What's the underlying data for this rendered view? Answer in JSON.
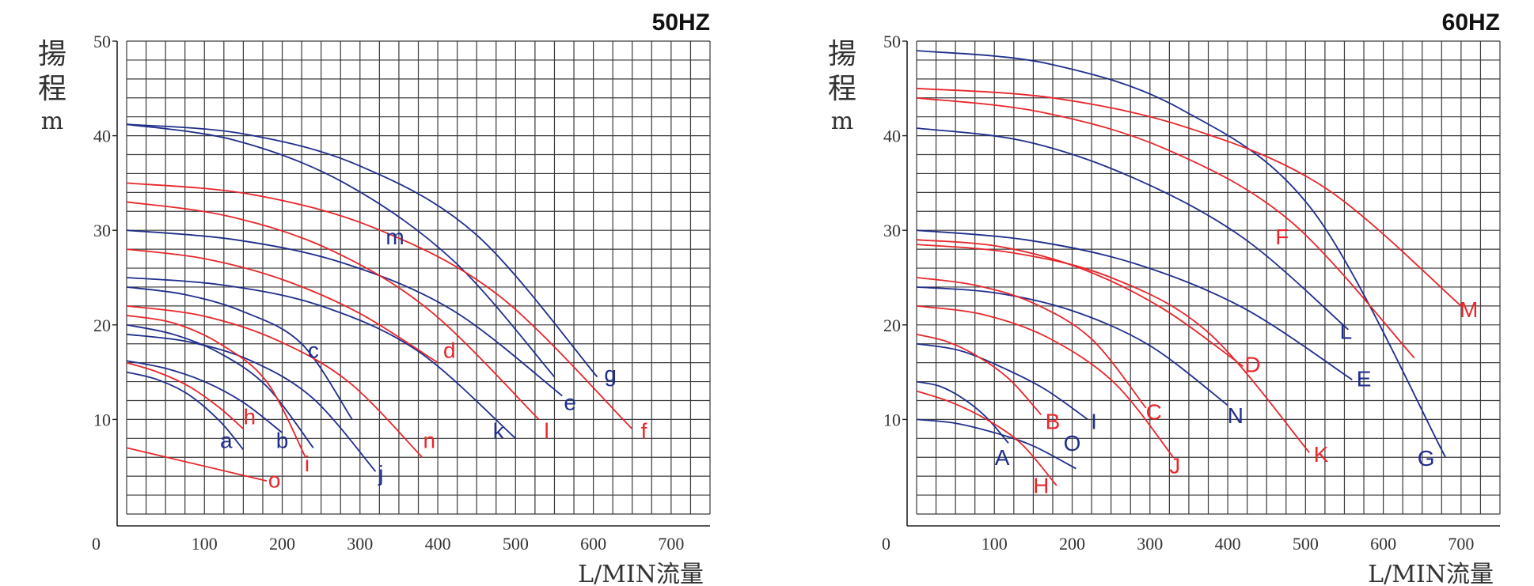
{
  "colors": {
    "red": "#e8262b",
    "blue": "#1f2e8c",
    "grid": "#3a3a3a",
    "axis": "#222222"
  },
  "chart_data": [
    {
      "type": "line",
      "title": "50HZ",
      "ylabel": "揚程",
      "yunit": "m",
      "xlabel": "L/MIN流量",
      "origin_label": "0",
      "xlim": [
        0,
        750
      ],
      "ylim": [
        0,
        50
      ],
      "xticks": [
        100,
        200,
        300,
        400,
        500,
        600,
        700
      ],
      "yticks": [
        10,
        20,
        30,
        40,
        50
      ],
      "grid": true,
      "series": [
        {
          "name": "a",
          "color": "blue",
          "x": [
            0,
            40,
            80,
            120,
            150
          ],
          "y": [
            15,
            14.2,
            12.6,
            9.8,
            6.8
          ]
        },
        {
          "name": "b",
          "color": "blue",
          "x": [
            0,
            50,
            100,
            150,
            200
          ],
          "y": [
            16.2,
            15.4,
            14,
            11.8,
            8.6
          ]
        },
        {
          "name": "c",
          "color": "blue",
          "x": [
            0,
            75,
            150,
            225,
            290
          ],
          "y": [
            24,
            23.2,
            21.4,
            18,
            10
          ]
        },
        {
          "name": "e",
          "color": "blue",
          "x": [
            0,
            140,
            280,
            420,
            560
          ],
          "y": [
            30,
            29,
            26.5,
            21.5,
            12.5
          ]
        },
        {
          "name": "g",
          "color": "blue",
          "x": [
            0,
            150,
            300,
            450,
            605
          ],
          "y": [
            41.2,
            40.2,
            36.8,
            29.5,
            14.5
          ]
        },
        {
          "name": "j",
          "color": "blue",
          "x": [
            0,
            80,
            160,
            240,
            320
          ],
          "y": [
            19,
            18.2,
            16.2,
            12.2,
            4.5
          ]
        },
        {
          "name": "k",
          "color": "blue",
          "x": [
            0,
            125,
            250,
            375,
            500
          ],
          "y": [
            25,
            24.2,
            22,
            17.2,
            8
          ]
        },
        {
          "name": "m",
          "color": "blue",
          "x": [
            0,
            140,
            280,
            420,
            550
          ],
          "y": [
            41.2,
            39.5,
            35,
            26.8,
            14.5
          ]
        },
        {
          "name": "unlabeled",
          "color": "blue",
          "x": [
            0,
            60,
            120,
            180,
            240
          ],
          "y": [
            20,
            19,
            17,
            13.5,
            7
          ]
        },
        {
          "name": "d",
          "color": "red",
          "x": [
            0,
            100,
            200,
            300,
            400
          ],
          "y": [
            28,
            27,
            24.8,
            21.2,
            16
          ]
        },
        {
          "name": "f",
          "color": "red",
          "x": [
            0,
            160,
            320,
            480,
            650
          ],
          "y": [
            35,
            33.8,
            30.2,
            23,
            9
          ]
        },
        {
          "name": "h",
          "color": "red",
          "x": [
            0,
            40,
            80,
            120,
            150
          ],
          "y": [
            16,
            15,
            13.5,
            11.2,
            9
          ]
        },
        {
          "name": "i",
          "color": "red",
          "x": [
            0,
            60,
            120,
            180,
            230
          ],
          "y": [
            21,
            20.2,
            18,
            14,
            6
          ]
        },
        {
          "name": "l",
          "color": "red",
          "x": [
            0,
            130,
            260,
            390,
            530
          ],
          "y": [
            33,
            31.5,
            28,
            21.5,
            10
          ]
        },
        {
          "name": "n",
          "color": "red",
          "x": [
            0,
            95,
            190,
            285,
            380
          ],
          "y": [
            22,
            21,
            18.5,
            14,
            6
          ]
        },
        {
          "name": "o",
          "color": "red",
          "x": [
            0,
            180
          ],
          "y": [
            7,
            3.5
          ]
        }
      ],
      "labels": [
        {
          "text": "a",
          "color": "blue",
          "x": 128,
          "y": 7
        },
        {
          "text": "b",
          "color": "blue",
          "x": 200,
          "y": 7
        },
        {
          "text": "c",
          "color": "blue",
          "x": 240,
          "y": 16.5
        },
        {
          "text": "e",
          "color": "blue",
          "x": 570,
          "y": 11
        },
        {
          "text": "g",
          "color": "blue",
          "x": 622,
          "y": 14
        },
        {
          "text": "j",
          "color": "blue",
          "x": 327,
          "y": 3.5
        },
        {
          "text": "k",
          "color": "blue",
          "x": 478,
          "y": 8
        },
        {
          "text": "m",
          "color": "blue",
          "x": 345,
          "y": 28.5
        },
        {
          "text": "d",
          "color": "red",
          "x": 415,
          "y": 16.5
        },
        {
          "text": "f",
          "color": "red",
          "x": 665,
          "y": 8
        },
        {
          "text": "h",
          "color": "red",
          "x": 158,
          "y": 9.5
        },
        {
          "text": "i",
          "color": "red",
          "x": 232,
          "y": 4.5
        },
        {
          "text": "l",
          "color": "red",
          "x": 540,
          "y": 8
        },
        {
          "text": "n",
          "color": "red",
          "x": 389,
          "y": 7
        },
        {
          "text": "o",
          "color": "red",
          "x": 190,
          "y": 2.8
        }
      ]
    },
    {
      "type": "line",
      "title": "60HZ",
      "ylabel": "揚程",
      "yunit": "m",
      "xlabel": "L/MIN流量",
      "origin_label": "0",
      "xlim": [
        0,
        750
      ],
      "ylim": [
        0,
        50
      ],
      "xticks": [
        100,
        200,
        300,
        400,
        500,
        600,
        700
      ],
      "yticks": [
        10,
        20,
        30,
        40,
        50
      ],
      "grid": true,
      "series": [
        {
          "name": "A",
          "color": "blue",
          "x": [
            0,
            30,
            60,
            90,
            118
          ],
          "y": [
            14,
            13.5,
            12.2,
            10.2,
            7.5
          ]
        },
        {
          "name": "E",
          "color": "blue",
          "x": [
            0,
            140,
            280,
            420,
            560
          ],
          "y": [
            30,
            29,
            26.5,
            21.8,
            14.2
          ]
        },
        {
          "name": "G",
          "color": "blue",
          "x": [
            0,
            170,
            340,
            510,
            680
          ],
          "y": [
            49,
            47.6,
            42.8,
            32,
            6
          ]
        },
        {
          "name": "I",
          "color": "blue",
          "x": [
            0,
            55,
            110,
            165,
            220
          ],
          "y": [
            18,
            17.3,
            15.5,
            13.2,
            10
          ]
        },
        {
          "name": "L",
          "color": "blue",
          "x": [
            0,
            140,
            280,
            420,
            555
          ],
          "y": [
            40.8,
            39.4,
            35.5,
            29.2,
            19.5
          ]
        },
        {
          "name": "N",
          "color": "blue",
          "x": [
            0,
            100,
            200,
            300,
            400
          ],
          "y": [
            24,
            23.4,
            21.5,
            17.8,
            11.5
          ]
        },
        {
          "name": "O",
          "color": "blue",
          "x": [
            0,
            50,
            100,
            150,
            205
          ],
          "y": [
            10,
            9.6,
            8.6,
            7.2,
            4.8
          ]
        },
        {
          "name": "B",
          "color": "red",
          "x": [
            0,
            40,
            80,
            120,
            160
          ],
          "y": [
            19,
            18.2,
            16.6,
            14.2,
            10.5
          ]
        },
        {
          "name": "C",
          "color": "red",
          "x": [
            0,
            75,
            150,
            225,
            295
          ],
          "y": [
            25,
            24.2,
            22.3,
            18.5,
            11.2
          ]
        },
        {
          "name": "D",
          "color": "red",
          "x": [
            0,
            105,
            210,
            315,
            420
          ],
          "y": [
            29,
            28.3,
            26,
            21.8,
            15.6
          ]
        },
        {
          "name": "F",
          "color": "red",
          "x": [
            0,
            160,
            320,
            480,
            640
          ],
          "y": [
            44,
            42.5,
            38.6,
            31,
            16.5
          ]
        },
        {
          "name": "H",
          "color": "red",
          "x": [
            0,
            45,
            90,
            135,
            180
          ],
          "y": [
            13,
            11.8,
            10,
            7.4,
            3
          ]
        },
        {
          "name": "J",
          "color": "red",
          "x": [
            0,
            85,
            170,
            255,
            330
          ],
          "y": [
            22,
            21.1,
            18.6,
            13.8,
            6
          ]
        },
        {
          "name": "K",
          "color": "red",
          "x": [
            0,
            125,
            250,
            375,
            505
          ],
          "y": [
            28.5,
            27.6,
            25,
            19.2,
            6.5
          ]
        },
        {
          "name": "M",
          "color": "red",
          "x": [
            0,
            175,
            350,
            525,
            700
          ],
          "y": [
            45,
            44,
            40.8,
            34.5,
            22
          ]
        }
      ],
      "labels": [
        {
          "text": "A",
          "color": "blue",
          "x": 110,
          "y": 5.2
        },
        {
          "text": "B",
          "color": "red",
          "x": 175,
          "y": 9
        },
        {
          "text": "C",
          "color": "red",
          "x": 305,
          "y": 10
        },
        {
          "text": "D",
          "color": "red",
          "x": 432,
          "y": 15
        },
        {
          "text": "E",
          "color": "blue",
          "x": 575,
          "y": 13.5
        },
        {
          "text": "F",
          "color": "red",
          "x": 470,
          "y": 28.5
        },
        {
          "text": "G",
          "color": "blue",
          "x": 655,
          "y": 5.1
        },
        {
          "text": "H",
          "color": "red",
          "x": 160,
          "y": 2.2
        },
        {
          "text": "I",
          "color": "blue",
          "x": 228,
          "y": 9
        },
        {
          "text": "J",
          "color": "red",
          "x": 332,
          "y": 4.3
        },
        {
          "text": "K",
          "color": "red",
          "x": 520,
          "y": 5.5
        },
        {
          "text": "L",
          "color": "blue",
          "x": 552,
          "y": 18.5
        },
        {
          "text": "M",
          "color": "red",
          "x": 710,
          "y": 20.8
        },
        {
          "text": "N",
          "color": "blue",
          "x": 410,
          "y": 9.6
        },
        {
          "text": "O",
          "color": "blue",
          "x": 200,
          "y": 6.7
        }
      ]
    }
  ]
}
